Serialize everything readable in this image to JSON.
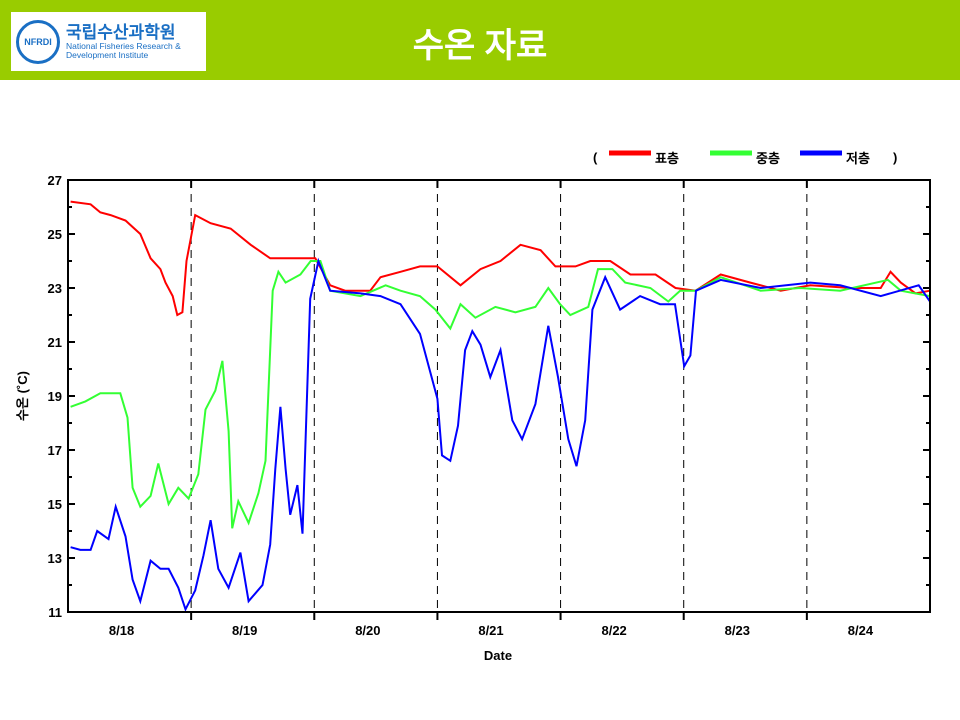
{
  "header": {
    "title": "수온 자료",
    "logo_ko": "국립수산과학원",
    "logo_en_1": "National Fisheries Research &",
    "logo_en_2": "Development Institute",
    "seal": "NFRDI"
  },
  "colors": {
    "banner": "#99cc00",
    "surface": "#ff0000",
    "middle": "#33ff33",
    "bottom": "#0000ff"
  },
  "chart_data": {
    "type": "line",
    "xlabel": "Date",
    "ylabel": "수온 (˚C)",
    "x_unit": "hours since 8/18 00:00",
    "xlim": [
      0,
      168
    ],
    "ylim": [
      11,
      27
    ],
    "yticks": [
      11,
      13,
      15,
      17,
      19,
      21,
      23,
      25,
      27
    ],
    "day_labels": [
      "8/18",
      "8/19",
      "8/20",
      "8/21",
      "8/22",
      "8/23",
      "8/24"
    ],
    "legend": {
      "open": "(",
      "close": ")",
      "placement": "top-right"
    },
    "series": [
      {
        "name": "표층",
        "color": "#ff0000",
        "points": [
          [
            0.5,
            26.2
          ],
          [
            4.4,
            26.1
          ],
          [
            6.3,
            25.8
          ],
          [
            8.3,
            25.7
          ],
          [
            11.2,
            25.5
          ],
          [
            14.1,
            25.0
          ],
          [
            16.1,
            24.1
          ],
          [
            18.0,
            23.7
          ],
          [
            19.0,
            23.2
          ],
          [
            20.4,
            22.7
          ],
          [
            21.3,
            22.0
          ],
          [
            22.3,
            22.1
          ],
          [
            23.1,
            24.0
          ],
          [
            24.8,
            25.7
          ],
          [
            27.8,
            25.4
          ],
          [
            31.7,
            25.2
          ],
          [
            35.6,
            24.6
          ],
          [
            39.4,
            24.1
          ],
          [
            43.3,
            24.1
          ],
          [
            48.2,
            24.1
          ],
          [
            51.1,
            23.1
          ],
          [
            54.0,
            22.9
          ],
          [
            58.9,
            22.9
          ],
          [
            60.9,
            23.4
          ],
          [
            64.8,
            23.6
          ],
          [
            68.6,
            23.8
          ],
          [
            72.0,
            23.8
          ],
          [
            76.5,
            23.1
          ],
          [
            80.4,
            23.7
          ],
          [
            84.3,
            24.0
          ],
          [
            88.2,
            24.6
          ],
          [
            92.1,
            24.4
          ],
          [
            95.0,
            23.8
          ],
          [
            98.9,
            23.8
          ],
          [
            101.8,
            24.0
          ],
          [
            105.7,
            24.0
          ],
          [
            109.6,
            23.5
          ],
          [
            114.5,
            23.5
          ],
          [
            118.4,
            23.0
          ],
          [
            122.3,
            22.9
          ],
          [
            127.2,
            23.5
          ],
          [
            133.0,
            23.2
          ],
          [
            138.9,
            22.9
          ],
          [
            144.7,
            23.1
          ],
          [
            152.5,
            23.0
          ],
          [
            158.4,
            23.0
          ],
          [
            160.3,
            23.6
          ],
          [
            162.3,
            23.2
          ],
          [
            165.2,
            22.8
          ],
          [
            168,
            22.9
          ]
        ]
      },
      {
        "name": "중층",
        "color": "#33ff33",
        "points": [
          [
            0.5,
            18.6
          ],
          [
            3.4,
            18.8
          ],
          [
            6.3,
            19.1
          ],
          [
            10.2,
            19.1
          ],
          [
            11.6,
            18.2
          ],
          [
            12.6,
            15.6
          ],
          [
            14.1,
            14.9
          ],
          [
            16.1,
            15.3
          ],
          [
            17.6,
            16.5
          ],
          [
            19.6,
            15.0
          ],
          [
            21.5,
            15.6
          ],
          [
            23.5,
            15.2
          ],
          [
            25.4,
            16.1
          ],
          [
            26.8,
            18.5
          ],
          [
            28.7,
            19.2
          ],
          [
            30.1,
            20.3
          ],
          [
            31.3,
            17.7
          ],
          [
            32.0,
            14.1
          ],
          [
            33.2,
            15.1
          ],
          [
            35.2,
            14.3
          ],
          [
            37.1,
            15.4
          ],
          [
            38.5,
            16.6
          ],
          [
            39.9,
            22.9
          ],
          [
            41.0,
            23.6
          ],
          [
            42.4,
            23.2
          ],
          [
            45.3,
            23.5
          ],
          [
            47.3,
            24.0
          ],
          [
            49.2,
            24.0
          ],
          [
            51.1,
            22.9
          ],
          [
            57.0,
            22.7
          ],
          [
            61.9,
            23.1
          ],
          [
            64.8,
            22.9
          ],
          [
            68.6,
            22.7
          ],
          [
            71.6,
            22.2
          ],
          [
            74.5,
            21.5
          ],
          [
            76.5,
            22.4
          ],
          [
            79.4,
            21.9
          ],
          [
            83.3,
            22.3
          ],
          [
            87.2,
            22.1
          ],
          [
            91.1,
            22.3
          ],
          [
            93.6,
            23.0
          ],
          [
            95.9,
            22.4
          ],
          [
            97.9,
            22.0
          ],
          [
            101.4,
            22.3
          ],
          [
            103.3,
            23.7
          ],
          [
            106.1,
            23.7
          ],
          [
            108.6,
            23.2
          ],
          [
            113.5,
            23.0
          ],
          [
            117.0,
            22.5
          ],
          [
            119.3,
            22.9
          ],
          [
            122.3,
            22.9
          ],
          [
            127.2,
            23.4
          ],
          [
            135.0,
            22.9
          ],
          [
            142.7,
            23.0
          ],
          [
            150.5,
            22.9
          ],
          [
            159.8,
            23.3
          ],
          [
            162.3,
            22.9
          ],
          [
            168,
            22.7
          ]
        ]
      },
      {
        "name": "저층",
        "color": "#0000ff",
        "points": [
          [
            0.5,
            13.4
          ],
          [
            2.4,
            13.3
          ],
          [
            4.4,
            13.3
          ],
          [
            5.7,
            14.0
          ],
          [
            7.9,
            13.7
          ],
          [
            9.3,
            14.9
          ],
          [
            11.2,
            13.8
          ],
          [
            12.6,
            12.2
          ],
          [
            14.1,
            11.4
          ],
          [
            16.1,
            12.9
          ],
          [
            18.0,
            12.6
          ],
          [
            19.6,
            12.6
          ],
          [
            21.5,
            11.9
          ],
          [
            22.9,
            11.1
          ],
          [
            24.8,
            11.8
          ],
          [
            26.4,
            13.1
          ],
          [
            27.8,
            14.4
          ],
          [
            29.3,
            12.6
          ],
          [
            31.3,
            11.9
          ],
          [
            33.6,
            13.2
          ],
          [
            35.2,
            11.4
          ],
          [
            37.9,
            12.0
          ],
          [
            39.4,
            13.5
          ],
          [
            40.4,
            16.3
          ],
          [
            41.4,
            18.6
          ],
          [
            42.4,
            16.3
          ],
          [
            43.3,
            14.6
          ],
          [
            44.7,
            15.7
          ],
          [
            45.7,
            13.9
          ],
          [
            47.2,
            22.6
          ],
          [
            48.8,
            24.0
          ],
          [
            51.1,
            22.9
          ],
          [
            57.0,
            22.8
          ],
          [
            60.9,
            22.7
          ],
          [
            64.8,
            22.4
          ],
          [
            68.6,
            21.3
          ],
          [
            72.0,
            18.9
          ],
          [
            72.9,
            16.8
          ],
          [
            74.5,
            16.6
          ],
          [
            76.0,
            17.9
          ],
          [
            77.4,
            20.7
          ],
          [
            78.8,
            21.4
          ],
          [
            80.4,
            20.9
          ],
          [
            82.3,
            19.7
          ],
          [
            84.3,
            20.7
          ],
          [
            86.6,
            18.1
          ],
          [
            88.5,
            17.4
          ],
          [
            91.1,
            18.7
          ],
          [
            93.6,
            21.6
          ],
          [
            95.5,
            19.7
          ],
          [
            97.5,
            17.4
          ],
          [
            99.1,
            16.4
          ],
          [
            100.8,
            18.1
          ],
          [
            102.2,
            22.2
          ],
          [
            104.7,
            23.4
          ],
          [
            107.6,
            22.2
          ],
          [
            111.5,
            22.7
          ],
          [
            115.4,
            22.4
          ],
          [
            118.3,
            22.4
          ],
          [
            120.1,
            20.1
          ],
          [
            121.3,
            20.5
          ],
          [
            122.4,
            22.9
          ],
          [
            127.2,
            23.3
          ],
          [
            135.0,
            23.0
          ],
          [
            144.7,
            23.2
          ],
          [
            150.5,
            23.1
          ],
          [
            158.4,
            22.7
          ],
          [
            165.8,
            23.1
          ],
          [
            168,
            22.5
          ]
        ]
      }
    ]
  }
}
